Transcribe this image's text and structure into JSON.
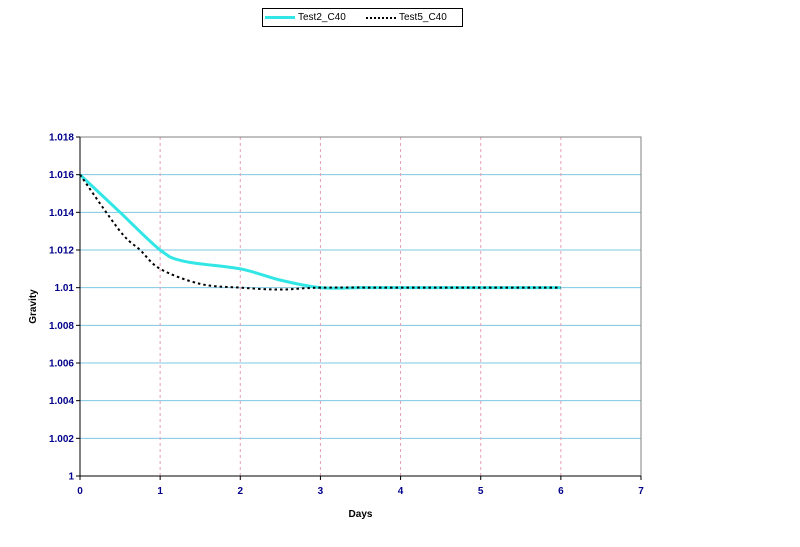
{
  "chart_data": {
    "type": "line",
    "title": "",
    "xlabel": "Days",
    "ylabel": "Gravity",
    "xlim": [
      0,
      7
    ],
    "ylim": [
      1,
      1.018
    ],
    "x_ticks": [
      "0",
      "1",
      "2",
      "3",
      "4",
      "5",
      "6",
      "7"
    ],
    "y_ticks": [
      "1",
      "1.002",
      "1.004",
      "1.006",
      "1.008",
      "1.01",
      "1.012",
      "1.014",
      "1.016",
      "1.018"
    ],
    "grid": true,
    "legend_placement": "top",
    "series": [
      {
        "name": "Test2_C40",
        "color": "#33e6e6",
        "style": "solid",
        "x": [
          0,
          0.5,
          1,
          1.3,
          2,
          2.5,
          3,
          3.5,
          4,
          5,
          6
        ],
        "y": [
          1.016,
          1.014,
          1.012,
          1.0114,
          1.011,
          1.0104,
          1.01,
          1.01,
          1.01,
          1.01,
          1.01
        ]
      },
      {
        "name": "Test5_C40",
        "color": "#000000",
        "style": "dotted",
        "x": [
          0,
          0.5,
          0.75,
          1,
          1.5,
          2,
          2.5,
          3,
          4,
          5,
          6
        ],
        "y": [
          1.016,
          1.013,
          1.012,
          1.011,
          1.0102,
          1.01,
          1.0099,
          1.01,
          1.01,
          1.01,
          1.01
        ]
      }
    ]
  }
}
